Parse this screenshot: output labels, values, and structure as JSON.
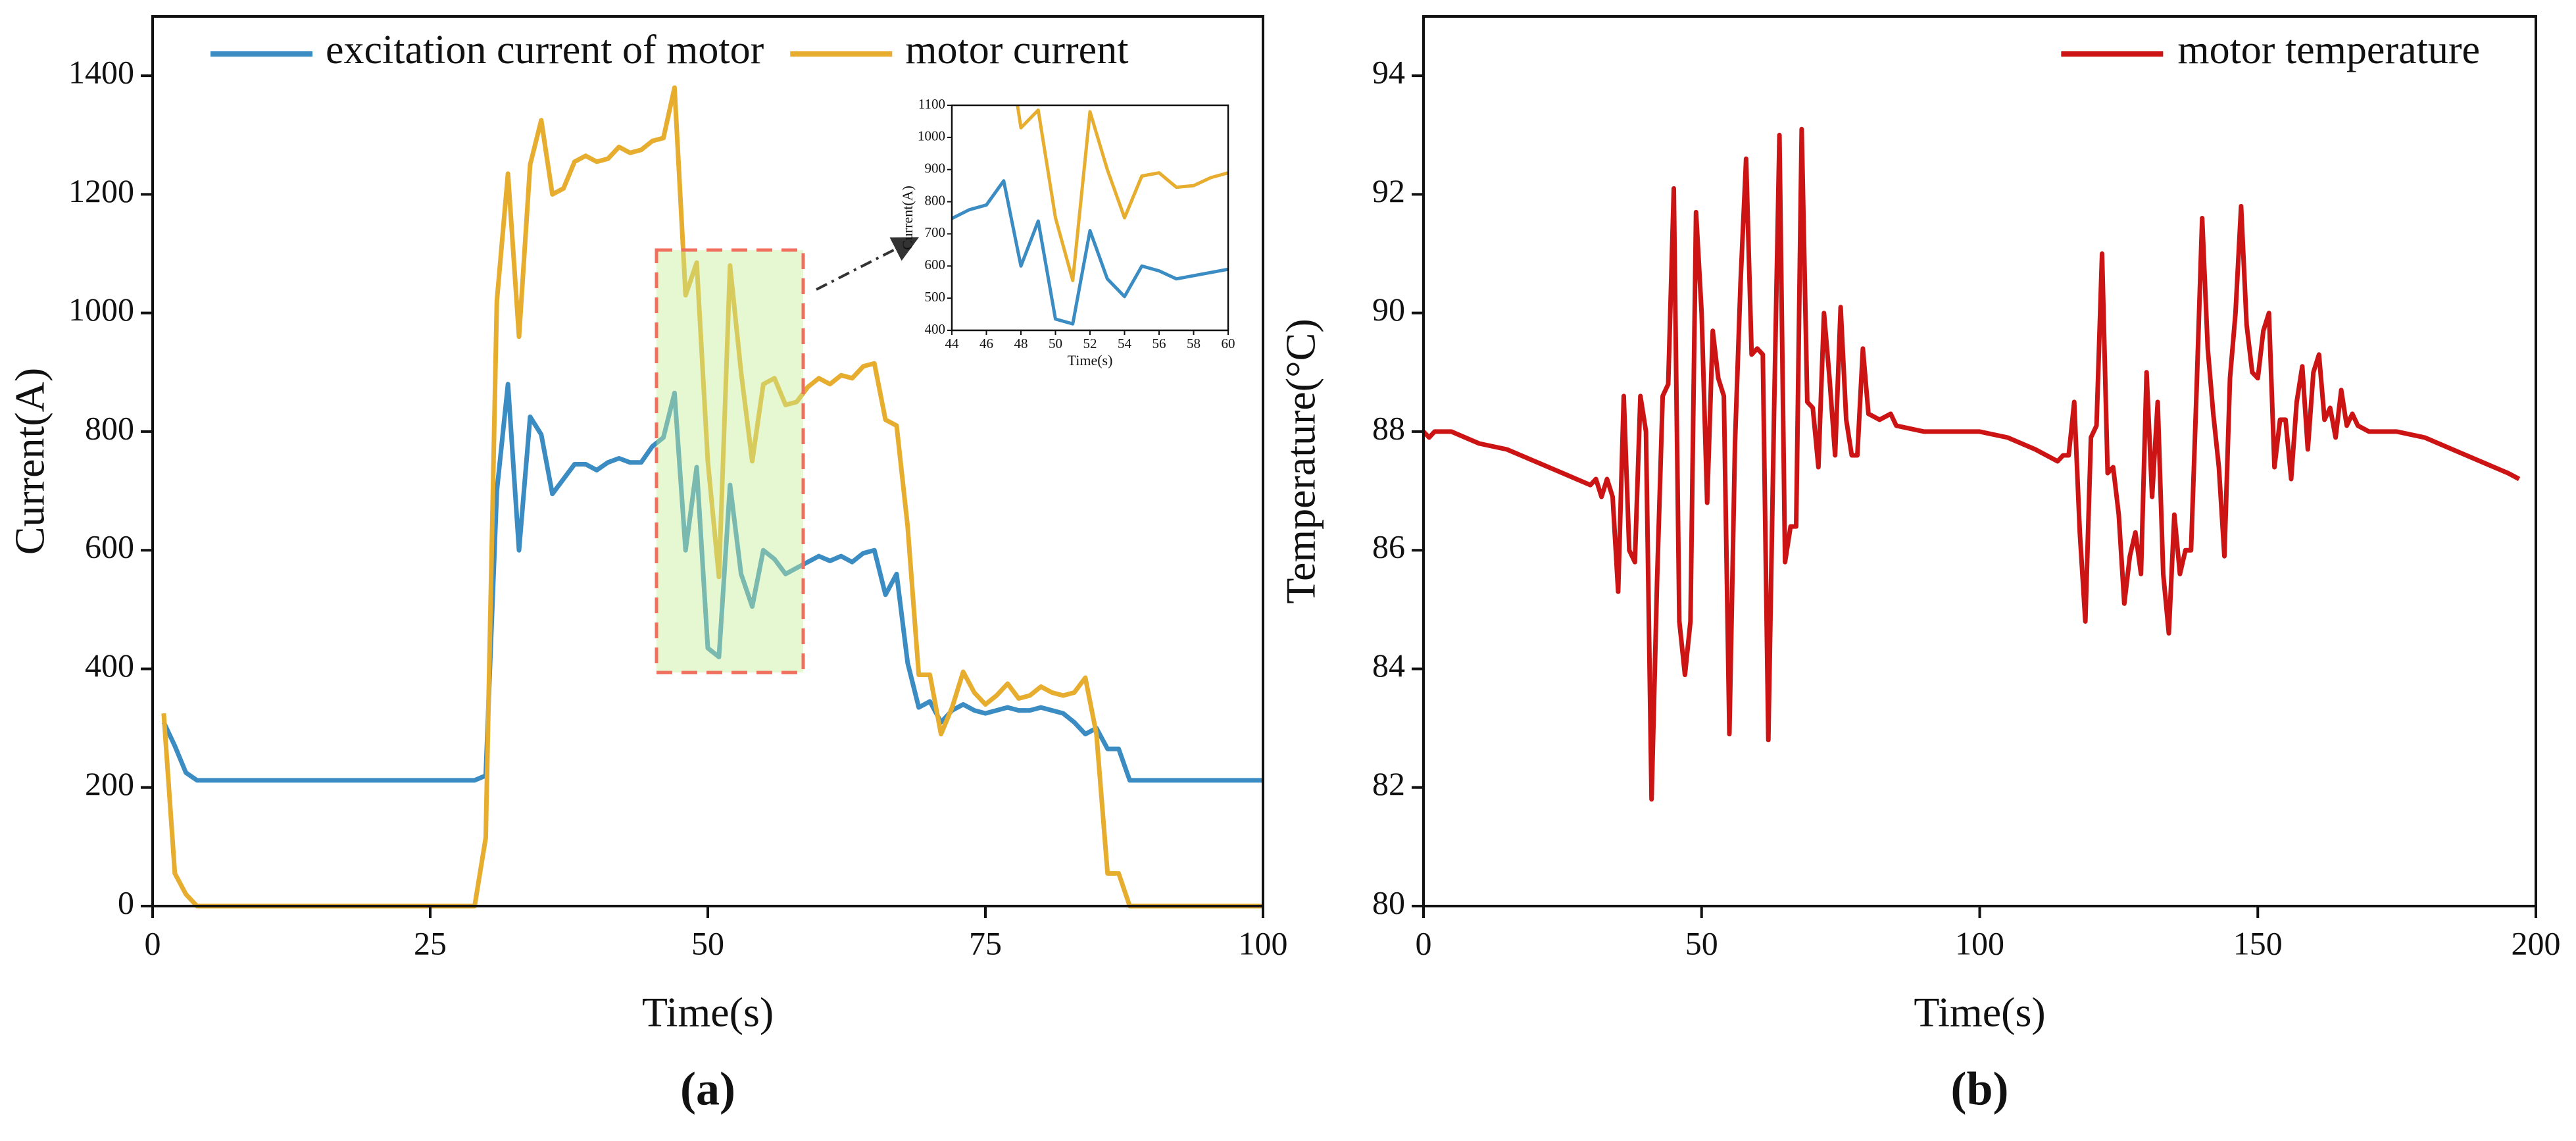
{
  "chart_data": [
    {
      "type": "line",
      "caption": "(a)",
      "xlabel": "Time(s)",
      "ylabel": "Current(A)",
      "xlim": [
        0,
        100
      ],
      "xticks": [
        0,
        25,
        50,
        75,
        100
      ],
      "ylim": [
        0,
        1500
      ],
      "yticks": [
        0,
        200,
        400,
        600,
        800,
        1000,
        1200,
        1400
      ],
      "legend": "upper center",
      "x": [
        1,
        2,
        3,
        4,
        5,
        6,
        7,
        8,
        9,
        10,
        11,
        12,
        13,
        14,
        15,
        16,
        17,
        18,
        19,
        20,
        21,
        22,
        23,
        24,
        25,
        26,
        27,
        28,
        29,
        30,
        31,
        32,
        33,
        34,
        35,
        36,
        37,
        38,
        39,
        40,
        41,
        42,
        43,
        44,
        45,
        46,
        47,
        48,
        49,
        50,
        51,
        52,
        53,
        54,
        55,
        56,
        57,
        58,
        59,
        60,
        61,
        62,
        63,
        64,
        65,
        66,
        67,
        68,
        69,
        70,
        71,
        72,
        73,
        74,
        75,
        76,
        77,
        78,
        79,
        80,
        81,
        82,
        83,
        84,
        85,
        86,
        87,
        88,
        89,
        90,
        91,
        92,
        93,
        94,
        95,
        96,
        97,
        98,
        99,
        100
      ],
      "series": [
        {
          "name": "excitation current of motor",
          "color": "#3a8cc2",
          "values": [
            310,
            270,
            225,
            212,
            212,
            212,
            212,
            212,
            212,
            212,
            212,
            212,
            212,
            212,
            212,
            212,
            212,
            212,
            212,
            212,
            212,
            212,
            212,
            212,
            212,
            212,
            212,
            212,
            212,
            220,
            700,
            880,
            600,
            825,
            795,
            695,
            720,
            745,
            745,
            735,
            748,
            755,
            748,
            748,
            775,
            790,
            865,
            600,
            740,
            435,
            420,
            710,
            560,
            505,
            600,
            585,
            560,
            570,
            580,
            590,
            582,
            590,
            580,
            595,
            600,
            525,
            560,
            410,
            335,
            345,
            310,
            330,
            340,
            330,
            325,
            330,
            335,
            330,
            330,
            335,
            330,
            325,
            310,
            290,
            300,
            265,
            265,
            212,
            212,
            212,
            212,
            212,
            212,
            212,
            212,
            212,
            212,
            212,
            212,
            212
          ]
        },
        {
          "name": "motor current",
          "color": "#e6ad2e",
          "values": [
            325,
            55,
            20,
            0,
            0,
            0,
            0,
            0,
            0,
            0,
            0,
            0,
            0,
            0,
            0,
            0,
            0,
            0,
            0,
            0,
            0,
            0,
            0,
            0,
            0,
            0,
            0,
            0,
            0,
            115,
            1020,
            1235,
            960,
            1250,
            1325,
            1200,
            1210,
            1255,
            1265,
            1255,
            1260,
            1280,
            1270,
            1275,
            1290,
            1295,
            1380,
            1030,
            1085,
            750,
            555,
            1080,
            900,
            750,
            880,
            890,
            845,
            850,
            875,
            890,
            880,
            895,
            890,
            910,
            915,
            820,
            810,
            640,
            390,
            390,
            290,
            335,
            395,
            360,
            340,
            355,
            375,
            350,
            355,
            370,
            360,
            355,
            360,
            385,
            290,
            55,
            55,
            0,
            0,
            0,
            0,
            0,
            0,
            0,
            0,
            0,
            0,
            0,
            0,
            0
          ]
        }
      ],
      "inset": {
        "xlabel": "Time(s)",
        "ylabel": "Current(A)",
        "xlim": [
          44,
          60
        ],
        "xticks": [
          44,
          46,
          48,
          50,
          52,
          54,
          56,
          58,
          60
        ],
        "ylim": [
          400,
          1100
        ],
        "yticks": [
          400,
          500,
          600,
          700,
          800,
          900,
          1000,
          1100
        ]
      }
    },
    {
      "type": "line",
      "caption": "(b)",
      "xlabel": "Time(s)",
      "ylabel": "Temperature(°C)",
      "xlim": [
        0,
        200
      ],
      "xticks": [
        0,
        50,
        100,
        150,
        200
      ],
      "ylim": [
        80,
        95
      ],
      "yticks": [
        80,
        82,
        84,
        86,
        88,
        90,
        92,
        94
      ],
      "legend": "upper right",
      "x": [
        0,
        1,
        2,
        5,
        10,
        15,
        20,
        25,
        30,
        31,
        32,
        33,
        34,
        35,
        36,
        37,
        38,
        39,
        40,
        41,
        42,
        43,
        44,
        45,
        46,
        47,
        48,
        49,
        50,
        51,
        52,
        53,
        54,
        55,
        56,
        57,
        58,
        59,
        60,
        61,
        62,
        63,
        64,
        65,
        66,
        67,
        68,
        69,
        70,
        71,
        72,
        73,
        74,
        75,
        76,
        77,
        78,
        79,
        80,
        82,
        84,
        85,
        90,
        100,
        105,
        110,
        112,
        114,
        115,
        116,
        117,
        118,
        119,
        120,
        121,
        122,
        123,
        124,
        125,
        126,
        127,
        128,
        129,
        130,
        131,
        132,
        133,
        134,
        135,
        136,
        137,
        138,
        139,
        140,
        141,
        142,
        143,
        144,
        145,
        146,
        147,
        148,
        149,
        150,
        151,
        152,
        153,
        154,
        155,
        156,
        157,
        158,
        159,
        160,
        161,
        162,
        163,
        164,
        165,
        166,
        167,
        168,
        170,
        175,
        180,
        185,
        190,
        195,
        197
      ],
      "series": [
        {
          "name": "motor temperature",
          "color": "#cc1414",
          "values": [
            88.0,
            87.9,
            88.0,
            88.0,
            87.8,
            87.7,
            87.5,
            87.3,
            87.1,
            87.2,
            86.9,
            87.2,
            86.9,
            85.3,
            88.6,
            86.0,
            85.8,
            88.6,
            88.0,
            81.8,
            85.5,
            88.6,
            88.8,
            92.1,
            84.8,
            83.9,
            84.8,
            91.7,
            90.0,
            86.8,
            89.7,
            88.9,
            88.6,
            82.9,
            87.8,
            90.5,
            92.6,
            89.3,
            89.4,
            89.3,
            82.8,
            88.2,
            93.0,
            85.8,
            86.4,
            86.4,
            93.1,
            88.5,
            88.4,
            87.4,
            90.0,
            88.9,
            87.6,
            90.1,
            88.2,
            87.6,
            87.6,
            89.4,
            88.3,
            88.2,
            88.3,
            88.1,
            88.0,
            88.0,
            87.9,
            87.7,
            87.6,
            87.5,
            87.6,
            87.6,
            88.5,
            86.3,
            84.8,
            87.9,
            88.1,
            91.0,
            87.3,
            87.4,
            86.6,
            85.1,
            85.9,
            86.3,
            85.6,
            89.0,
            86.9,
            88.5,
            85.6,
            84.6,
            86.6,
            85.6,
            86.0,
            86.0,
            88.7,
            91.6,
            89.4,
            88.3,
            87.4,
            85.9,
            88.9,
            90.0,
            91.8,
            89.8,
            89.0,
            88.9,
            89.7,
            90.0,
            87.4,
            88.2,
            88.2,
            87.2,
            88.5,
            89.1,
            87.7,
            89.0,
            89.3,
            88.2,
            88.4,
            87.9,
            88.7,
            88.1,
            88.3,
            88.1,
            88.0,
            88.0,
            87.9,
            87.7,
            87.5,
            87.3,
            87.2
          ]
        }
      ]
    }
  ]
}
